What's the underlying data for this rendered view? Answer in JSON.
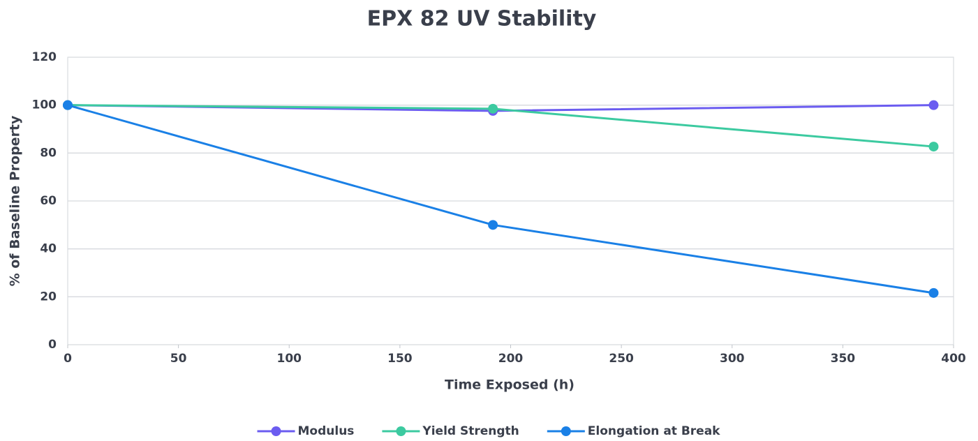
{
  "chart_data": {
    "type": "line",
    "title": "EPX 82 UV Stability",
    "x_label": "Time Exposed (h)",
    "y_label": "% of Baseline Property",
    "x": [
      0,
      192,
      391
    ],
    "series": [
      {
        "name": "Modulus",
        "color": "#6b5cf0",
        "values": [
          100,
          97.6,
          100
        ]
      },
      {
        "name": "Yield Strength",
        "color": "#3ccaa0",
        "values": [
          100,
          98.5,
          82.7
        ]
      },
      {
        "name": "Elongation at Break",
        "color": "#1a80e6",
        "values": [
          100,
          50,
          21.6
        ]
      }
    ],
    "xlim": [
      0,
      400
    ],
    "xticks": [
      0,
      50,
      100,
      150,
      200,
      250,
      300,
      350,
      400
    ],
    "ylim": [
      0,
      120
    ],
    "yticks": [
      0,
      20,
      40,
      60,
      80,
      100,
      120
    ],
    "grid": true,
    "legend": "bottom"
  }
}
